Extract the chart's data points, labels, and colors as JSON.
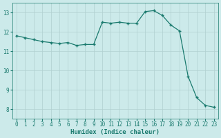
{
  "x": [
    0,
    1,
    2,
    3,
    4,
    5,
    6,
    7,
    8,
    9,
    10,
    11,
    12,
    13,
    14,
    15,
    16,
    17,
    18,
    19,
    20,
    21,
    22,
    23
  ],
  "y": [
    11.8,
    11.7,
    11.6,
    11.5,
    11.45,
    11.4,
    11.45,
    11.3,
    11.35,
    11.35,
    12.5,
    12.45,
    12.5,
    12.45,
    12.45,
    13.05,
    13.1,
    12.85,
    12.35,
    12.05,
    9.7,
    8.6,
    8.2,
    8.1
  ],
  "line_color": "#1a7a6e",
  "marker": "+",
  "markersize": 3.5,
  "linewidth": 0.9,
  "background_color": "#cceaea",
  "grid_color": "#b0d0d0",
  "xlabel": "Humidex (Indice chaleur)",
  "xlim": [
    -0.5,
    23.5
  ],
  "ylim": [
    7.5,
    13.5
  ],
  "yticks": [
    8,
    9,
    10,
    11,
    12,
    13
  ],
  "xticks": [
    0,
    1,
    2,
    3,
    4,
    5,
    6,
    7,
    8,
    9,
    10,
    11,
    12,
    13,
    14,
    15,
    16,
    17,
    18,
    19,
    20,
    21,
    22,
    23
  ],
  "tick_fontsize": 5.5,
  "xlabel_fontsize": 6.5,
  "xlabel_fontweight": "bold"
}
